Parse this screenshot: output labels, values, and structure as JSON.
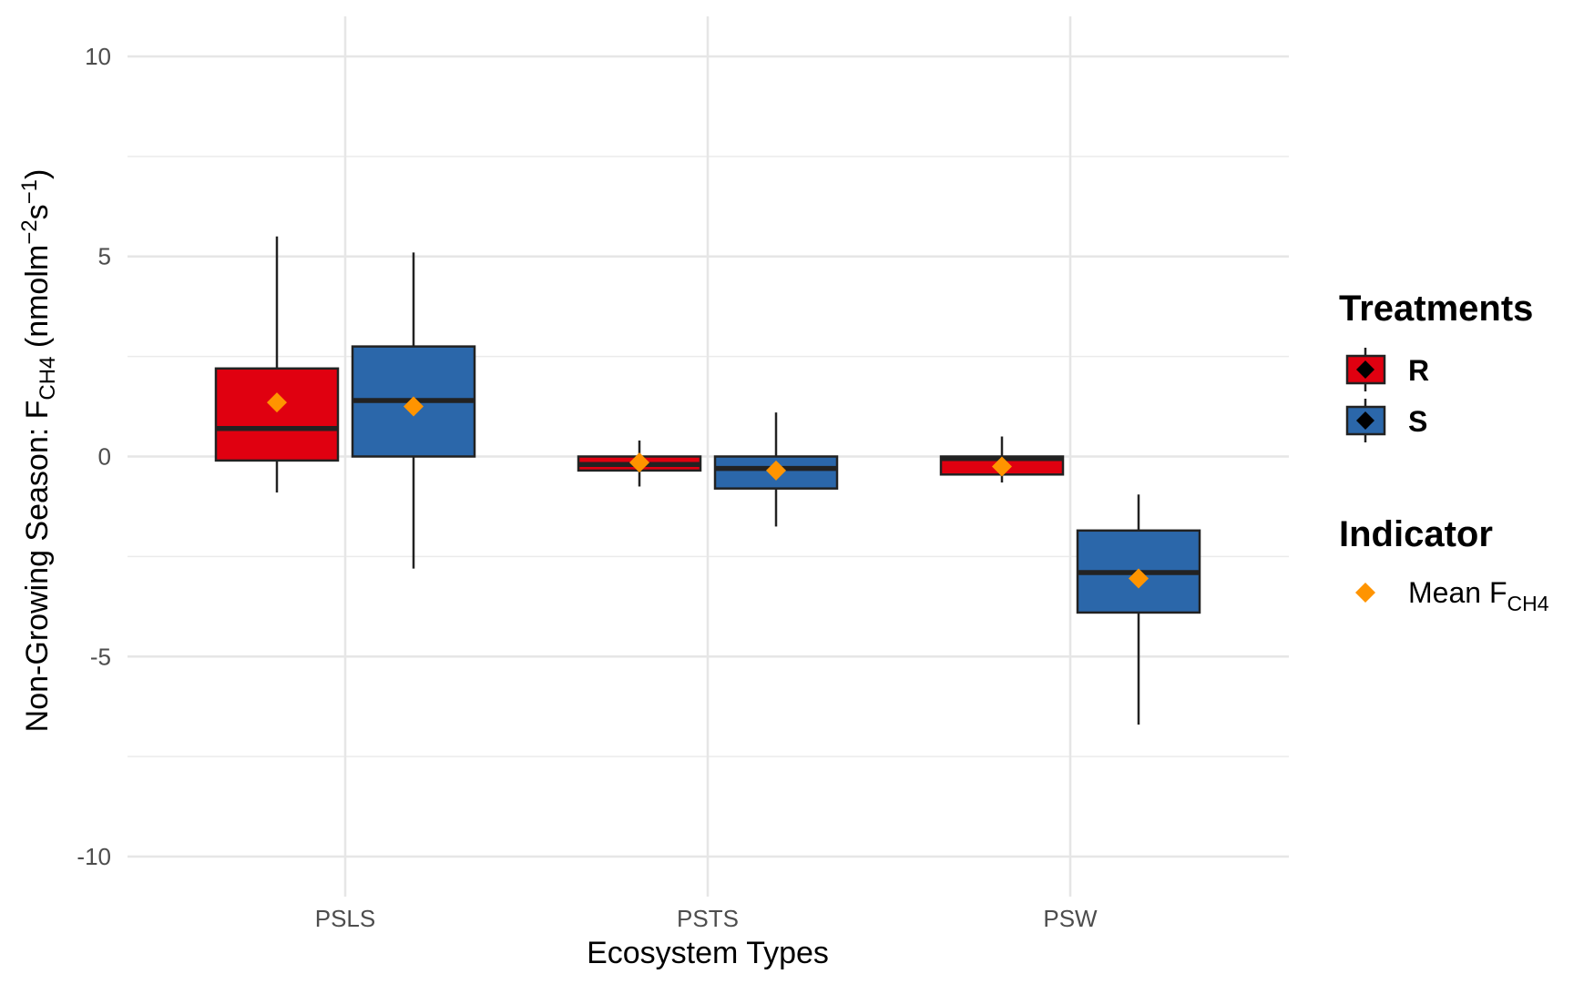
{
  "chart_data": {
    "type": "box",
    "ylabel": {
      "main": "Non-Growing Season: F",
      "main_sub": "CH4",
      "unit_open": " (nmolm",
      "unit_exp1": "−2",
      "unit_mid": "s",
      "unit_exp2": "−1",
      "unit_close": ")"
    },
    "xlabel": "Ecosystem Types",
    "ylim": [
      -11,
      11
    ],
    "yticks": [
      {
        "value": 10,
        "label": "10"
      },
      {
        "value": 5,
        "label": "5"
      },
      {
        "value": 0,
        "label": "0"
      },
      {
        "value": -5,
        "label": "-5"
      },
      {
        "value": -10,
        "label": "-10"
      }
    ],
    "categories": [
      "PSLS",
      "PSTS",
      "PSW"
    ],
    "grid": true,
    "legend_position": "right",
    "series": [
      {
        "name": "R",
        "color": "#E00010",
        "boxes": [
          {
            "category": "PSLS",
            "whisker_low": -0.9,
            "q1": -0.1,
            "median": 0.7,
            "q3": 2.2,
            "whisker_high": 5.5,
            "mean": 1.35
          },
          {
            "category": "PSTS",
            "whisker_low": -0.75,
            "q1": -0.35,
            "median": -0.2,
            "q3": 0.0,
            "whisker_high": 0.4,
            "mean": -0.15
          },
          {
            "category": "PSW",
            "whisker_low": -0.65,
            "q1": -0.45,
            "median": -0.05,
            "q3": 0.0,
            "whisker_high": 0.5,
            "mean": -0.25
          }
        ]
      },
      {
        "name": "S",
        "color": "#2B67AA",
        "boxes": [
          {
            "category": "PSLS",
            "whisker_low": -2.8,
            "q1": 0.0,
            "median": 1.4,
            "q3": 2.75,
            "whisker_high": 5.1,
            "mean": 1.25
          },
          {
            "category": "PSTS",
            "whisker_low": -1.75,
            "q1": -0.8,
            "median": -0.3,
            "q3": 0.0,
            "whisker_high": 1.1,
            "mean": -0.35
          },
          {
            "category": "PSW",
            "whisker_low": -6.7,
            "q1": -3.9,
            "median": -2.9,
            "q3": -1.85,
            "whisker_high": -0.95,
            "mean": -3.05
          }
        ]
      }
    ],
    "mean_marker_color": "#FF9400",
    "legend": {
      "treatments_title": "Treatments",
      "treatments": [
        {
          "label": "R",
          "color": "#E00010"
        },
        {
          "label": "S",
          "color": "#2B67AA"
        }
      ],
      "indicator_title": "Indicator",
      "indicator_label": "Mean F",
      "indicator_label_sub": "CH4"
    }
  }
}
